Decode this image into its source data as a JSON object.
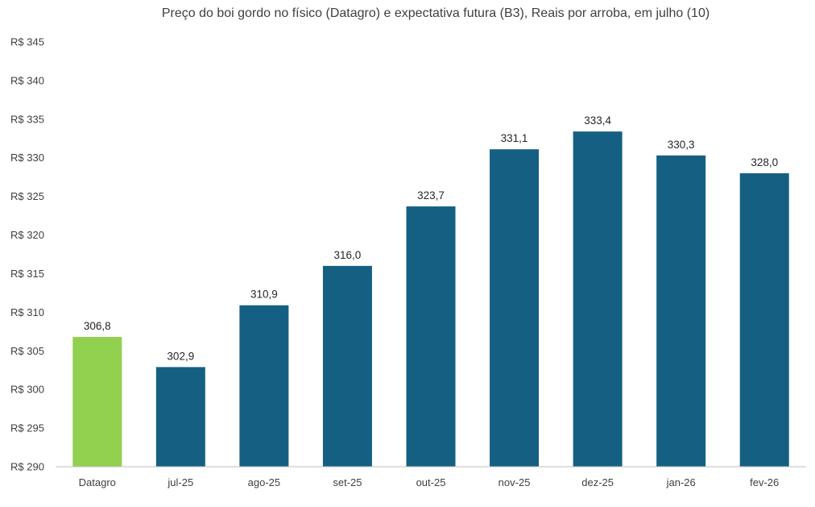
{
  "chart_data": {
    "type": "bar",
    "title": "Preço do boi gordo no físico (Datagro)  e expectativa futura (B3), Reais por arroba, em julho (10)",
    "categories": [
      "Datagro",
      "jul-25",
      "ago-25",
      "set-25",
      "out-25",
      "nov-25",
      "dez-25",
      "jan-26",
      "fev-26"
    ],
    "values": [
      306.8,
      302.9,
      310.9,
      316.0,
      323.7,
      331.1,
      333.4,
      330.3,
      328.0
    ],
    "value_labels": [
      "306,8",
      "302,9",
      "310,9",
      "316,0",
      "323,7",
      "331,1",
      "333,4",
      "330,3",
      "328,0"
    ],
    "ylim": [
      290,
      345
    ],
    "yticks": [
      290,
      295,
      300,
      305,
      310,
      315,
      320,
      325,
      330,
      335,
      340,
      345
    ],
    "ytick_labels": [
      "R$ 290",
      "R$ 295",
      "R$ 300",
      "R$ 305",
      "R$ 310",
      "R$ 315",
      "R$ 320",
      "R$ 325",
      "R$ 330",
      "R$ 335",
      "R$ 340",
      "R$ 345"
    ],
    "xlabel": "",
    "ylabel": "",
    "grid": false,
    "legend": "none",
    "colors": {
      "spot": "#92d050",
      "futures": "#156082"
    },
    "bar_color_keys": [
      "spot",
      "futures",
      "futures",
      "futures",
      "futures",
      "futures",
      "futures",
      "futures",
      "futures"
    ]
  }
}
